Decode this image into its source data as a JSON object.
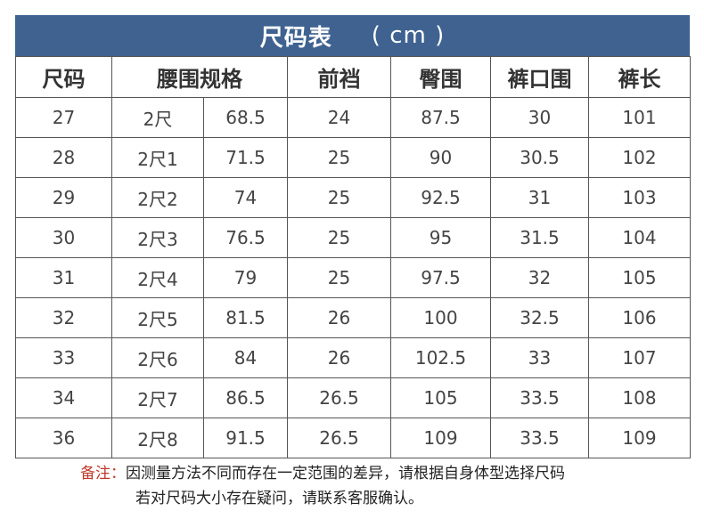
{
  "title": {
    "main": "尺码表",
    "unit": "( cm )"
  },
  "headers": {
    "size": "尺码",
    "waist": "腰围规格",
    "front_rise": "前裆",
    "hip": "臀围",
    "leg_opening": "裤口围",
    "length": "裤长"
  },
  "rows": [
    [
      "27",
      "2尺",
      "68.5",
      "24",
      "87.5",
      "30",
      "101"
    ],
    [
      "28",
      "2尺1",
      "71.5",
      "25",
      "90",
      "30.5",
      "102"
    ],
    [
      "29",
      "2尺2",
      "74",
      "25",
      "92.5",
      "31",
      "103"
    ],
    [
      "30",
      "2尺3",
      "76.5",
      "25",
      "95",
      "31.5",
      "104"
    ],
    [
      "31",
      "2尺4",
      "79",
      "25",
      "97.5",
      "32",
      "105"
    ],
    [
      "32",
      "2尺5",
      "81.5",
      "26",
      "100",
      "32.5",
      "106"
    ],
    [
      "33",
      "2尺6",
      "84",
      "26",
      "102.5",
      "33",
      "107"
    ],
    [
      "34",
      "2尺7",
      "86.5",
      "26.5",
      "105",
      "33.5",
      "108"
    ],
    [
      "36",
      "2尺8",
      "91.5",
      "26.5",
      "109",
      "33.5",
      "109"
    ]
  ],
  "note": {
    "label": "备注",
    "sep": "：",
    "line1": "因测量方法不同而存在一定范围的差异，请根据自身体型选择尺码",
    "line2": "若对尺码大小存在疑问，请联系客服确认。"
  },
  "colors": {
    "banner": "#3f6291",
    "note_label": "#c0392b",
    "border": "#555555"
  }
}
